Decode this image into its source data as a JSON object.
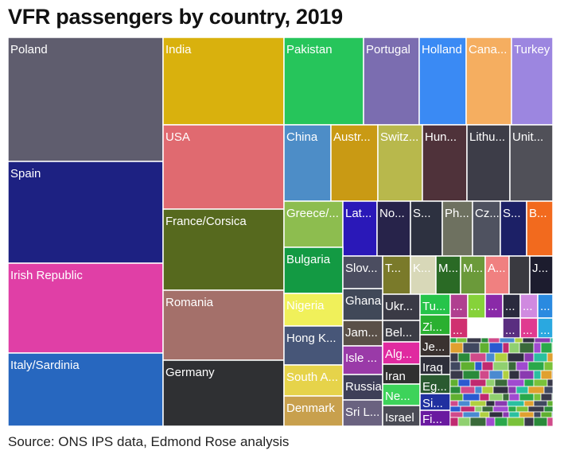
{
  "title": "VFR passengers by country, 2019",
  "source": "Source: ONS IPS data, Edmond Rose analysis",
  "chart_data": {
    "type": "treemap",
    "title": "VFR passengers by country, 2019",
    "cells": [
      {
        "name": "Poland",
        "label": "Poland",
        "color": "#5f5d6e"
      },
      {
        "name": "Spain",
        "label": "Spain",
        "color": "#1d2182"
      },
      {
        "name": "Irish Republic",
        "label": "Irish Republic",
        "color": "#e03fa6"
      },
      {
        "name": "Italy/Sardinia",
        "label": "Italy/Sardinia",
        "color": "#2767bf"
      },
      {
        "name": "India",
        "label": "India",
        "color": "#d9b10d"
      },
      {
        "name": "USA",
        "label": "USA",
        "color": "#e06a70"
      },
      {
        "name": "France/Corsica",
        "label": "France/Corsica",
        "color": "#56691e"
      },
      {
        "name": "Romania",
        "label": "Romania",
        "color": "#a4706a"
      },
      {
        "name": "Germany",
        "label": "Germany",
        "color": "#2f3033"
      },
      {
        "name": "Pakistan",
        "label": "Pakistan",
        "color": "#26c55b"
      },
      {
        "name": "Portugal",
        "label": "Portugal",
        "color": "#7b6db0"
      },
      {
        "name": "Holland",
        "label": "Holland",
        "color": "#3a8af4"
      },
      {
        "name": "Canada",
        "label": "Cana...",
        "color": "#f5ae60"
      },
      {
        "name": "Turkey",
        "label": "Turkey",
        "color": "#9c86e0"
      },
      {
        "name": "China",
        "label": "China",
        "color": "#4d8dc7"
      },
      {
        "name": "Australia",
        "label": "Austr...",
        "color": "#c99a14"
      },
      {
        "name": "Switzerland",
        "label": "Switz...",
        "color": "#b8b84c"
      },
      {
        "name": "Hungary",
        "label": "Hun...",
        "color": "#4f323a"
      },
      {
        "name": "Lithuania",
        "label": "Lithu...",
        "color": "#3d3d48"
      },
      {
        "name": "United",
        "label": "Unit...",
        "color": "#505058"
      },
      {
        "name": "Greece",
        "label": "Greece/...",
        "color": "#8dbd4f"
      },
      {
        "name": "Latvia",
        "label": "Lat...",
        "color": "#2a18b8"
      },
      {
        "name": "Norway",
        "label": "No...",
        "color": "#27234a"
      },
      {
        "name": "S1",
        "label": "S...",
        "color": "#2d3140"
      },
      {
        "name": "Philippines",
        "label": "Ph...",
        "color": "#6e7160"
      },
      {
        "name": "Czech",
        "label": "Cz...",
        "color": "#4f5260"
      },
      {
        "name": "S2",
        "label": "S...",
        "color": "#1c2066"
      },
      {
        "name": "B",
        "label": "B...",
        "color": "#f26a1e"
      },
      {
        "name": "Bulgaria",
        "label": "Bulgaria",
        "color": "#139a43"
      },
      {
        "name": "Nigeria",
        "label": "Nigeria",
        "color": "#f0f05a"
      },
      {
        "name": "Hong Kong",
        "label": "Hong K...",
        "color": "#475678"
      },
      {
        "name": "South Africa",
        "label": "South A...",
        "color": "#e6d34a"
      },
      {
        "name": "Denmark",
        "label": "Denmark",
        "color": "#c8a04d"
      },
      {
        "name": "Slovakia",
        "label": "Slov...",
        "color": "#4b4d60"
      },
      {
        "name": "T",
        "label": "T...",
        "color": "#7a7a2a"
      },
      {
        "name": "K",
        "label": "K...",
        "color": "#d8d8b8"
      },
      {
        "name": "M1",
        "label": "M...",
        "color": "#2a6a25"
      },
      {
        "name": "M2",
        "label": "M...",
        "color": "#6b9a3a"
      },
      {
        "name": "A",
        "label": "A...",
        "color": "#f08080"
      },
      {
        "name": "small-1",
        "label": "",
        "color": "#3a3a40"
      },
      {
        "name": "J",
        "label": "J...",
        "color": "#1c1c2e"
      },
      {
        "name": "Ghana",
        "label": "Ghana",
        "color": "#404858"
      },
      {
        "name": "Jamaica",
        "label": "Jam...",
        "color": "#5a5048"
      },
      {
        "name": "Isle of Man",
        "label": "Isle ...",
        "color": "#9a3aa8"
      },
      {
        "name": "Russia",
        "label": "Russia",
        "color": "#3e3f58"
      },
      {
        "name": "Sri Lanka",
        "label": "Sri L...",
        "color": "#6a6280"
      },
      {
        "name": "Ukraine",
        "label": "Ukr...",
        "color": "#3a3a45"
      },
      {
        "name": "Belgium",
        "label": "Bel...",
        "color": "#3c3d46"
      },
      {
        "name": "Algeria",
        "label": "Alg...",
        "color": "#e02aa0"
      },
      {
        "name": "Iran",
        "label": "Iran",
        "color": "#303030"
      },
      {
        "name": "Nepal",
        "label": "Ne...",
        "color": "#3dd35a"
      },
      {
        "name": "Israel",
        "label": "Israel",
        "color": "#4a4b55"
      },
      {
        "name": "Tunisia",
        "label": "Tu...",
        "color": "#26c44a"
      },
      {
        "name": "Zimbabwe",
        "label": "Zi...",
        "color": "#2ab030"
      },
      {
        "name": "Jersey",
        "label": "Je...",
        "color": "#3a3230"
      },
      {
        "name": "Iraq",
        "label": "Iraq",
        "color": "#2e2f3a"
      },
      {
        "name": "Egypt",
        "label": "Eg...",
        "color": "#2a5a30"
      },
      {
        "name": "Singapore",
        "label": "Si...",
        "color": "#2030a0"
      },
      {
        "name": "Finland",
        "label": "Fi...",
        "color": "#6a1aa0"
      },
      {
        "name": "s1",
        "label": "...",
        "color": "#b04090"
      },
      {
        "name": "s2",
        "label": "...",
        "color": "#86d23a"
      },
      {
        "name": "s3",
        "label": "...",
        "color": "#8a2aa8"
      },
      {
        "name": "s4",
        "label": "...",
        "color": "#2a2a3e"
      },
      {
        "name": "s5",
        "label": "...",
        "color": "#d08ae0"
      },
      {
        "name": "s6",
        "label": "...",
        "color": "#2a8ae0"
      },
      {
        "name": "s7",
        "label": "...",
        "color": "#d03070"
      },
      {
        "name": "s8",
        "label": "...",
        "color": "#e03a90"
      },
      {
        "name": "s9",
        "label": "...",
        "color": "#5a2e80"
      },
      {
        "name": "s10",
        "label": "...",
        "color": "#2aa8e0"
      }
    ]
  }
}
